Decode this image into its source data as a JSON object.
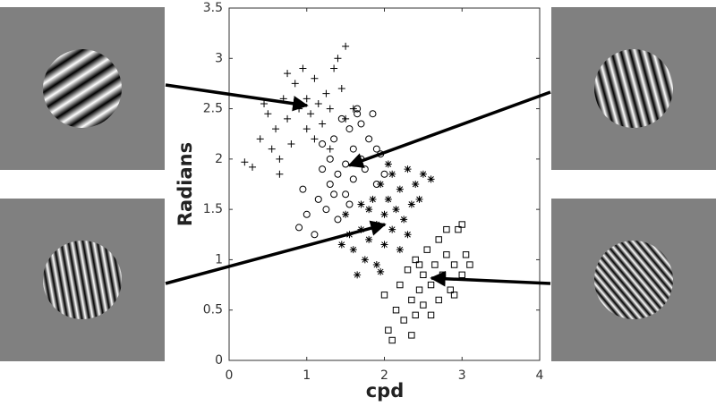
{
  "chart_data": {
    "type": "scatter",
    "xlabel": "cpd",
    "ylabel": "Radians",
    "xlim": [
      0,
      4
    ],
    "ylim": [
      0,
      3.5
    ],
    "xticks": [
      0,
      1,
      2,
      3,
      4
    ],
    "yticks": [
      0,
      0.5,
      1,
      1.5,
      2,
      2.5,
      3,
      3.5
    ],
    "series": [
      {
        "marker": "plus",
        "color": "#000000",
        "x": [
          0.2,
          0.3,
          0.4,
          0.5,
          0.55,
          0.6,
          0.65,
          0.7,
          0.75,
          0.8,
          0.85,
          0.9,
          0.95,
          1.0,
          1.0,
          1.05,
          1.1,
          1.1,
          1.15,
          1.2,
          1.25,
          1.3,
          1.35,
          1.4,
          1.45,
          1.5,
          1.5,
          1.6,
          0.65,
          0.75,
          0.45,
          1.3
        ],
        "y": [
          1.97,
          1.92,
          2.2,
          2.45,
          2.1,
          2.3,
          2.0,
          2.6,
          2.4,
          2.15,
          2.75,
          2.5,
          2.9,
          2.3,
          2.6,
          2.45,
          2.8,
          2.2,
          2.55,
          2.35,
          2.65,
          2.5,
          2.9,
          3.0,
          2.7,
          3.12,
          2.4,
          2.5,
          1.85,
          2.85,
          2.55,
          2.1
        ]
      },
      {
        "marker": "circle",
        "color": "#000000",
        "x": [
          0.9,
          0.95,
          1.0,
          1.1,
          1.15,
          1.2,
          1.25,
          1.3,
          1.3,
          1.35,
          1.4,
          1.4,
          1.45,
          1.5,
          1.5,
          1.55,
          1.6,
          1.6,
          1.65,
          1.7,
          1.7,
          1.75,
          1.8,
          1.85,
          1.9,
          1.9,
          1.95,
          2.0,
          1.55,
          1.2,
          1.65,
          1.35
        ],
        "y": [
          1.32,
          1.7,
          1.45,
          1.25,
          1.6,
          1.9,
          1.5,
          2.0,
          1.75,
          2.2,
          1.85,
          1.4,
          2.4,
          1.95,
          1.65,
          2.3,
          2.1,
          1.8,
          2.5,
          2.0,
          2.35,
          1.9,
          2.2,
          2.45,
          2.1,
          1.75,
          2.05,
          1.85,
          1.55,
          2.15,
          2.45,
          1.65
        ]
      },
      {
        "marker": "star",
        "color": "#000000",
        "x": [
          1.5,
          1.55,
          1.6,
          1.65,
          1.7,
          1.75,
          1.8,
          1.8,
          1.85,
          1.9,
          1.9,
          1.95,
          2.0,
          2.0,
          2.05,
          2.1,
          2.1,
          2.15,
          2.2,
          2.25,
          2.3,
          2.35,
          2.4,
          2.45,
          2.5,
          2.2,
          1.95,
          2.3,
          1.7,
          1.45,
          2.6,
          2.05
        ],
        "y": [
          1.45,
          1.25,
          1.1,
          0.85,
          1.3,
          1.0,
          1.5,
          1.2,
          1.6,
          1.35,
          0.95,
          1.75,
          1.45,
          1.15,
          1.6,
          1.3,
          1.85,
          1.5,
          1.7,
          1.4,
          1.9,
          1.55,
          1.75,
          1.6,
          1.85,
          1.1,
          0.88,
          1.25,
          1.55,
          1.15,
          1.8,
          1.95
        ]
      },
      {
        "marker": "square",
        "color": "#000000",
        "x": [
          2.0,
          2.05,
          2.1,
          2.15,
          2.2,
          2.25,
          2.3,
          2.35,
          2.4,
          2.4,
          2.45,
          2.5,
          2.5,
          2.55,
          2.6,
          2.65,
          2.7,
          2.7,
          2.75,
          2.8,
          2.85,
          2.9,
          2.95,
          3.0,
          3.05,
          3.1,
          2.6,
          2.35,
          2.8,
          3.0,
          2.45,
          2.9
        ],
        "y": [
          0.65,
          0.3,
          0.2,
          0.5,
          0.75,
          0.4,
          0.9,
          0.6,
          0.45,
          1.0,
          0.7,
          0.85,
          0.55,
          1.1,
          0.75,
          0.95,
          0.6,
          1.2,
          0.85,
          1.05,
          0.7,
          0.95,
          1.3,
          0.85,
          1.05,
          0.95,
          0.45,
          0.25,
          1.3,
          1.35,
          0.95,
          0.65
        ]
      }
    ]
  }
}
